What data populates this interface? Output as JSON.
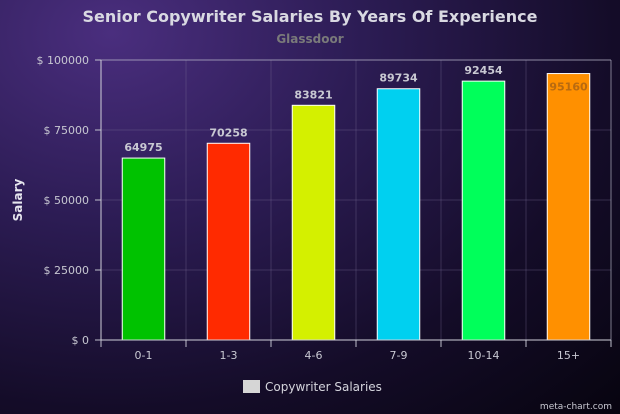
{
  "chart_data": {
    "type": "bar",
    "title": "Senior Copywriter Salaries By Years Of Experience",
    "subtitle": "Glassdoor",
    "xlabel": "",
    "ylabel": "Salary",
    "categories": [
      "0-1",
      "1-3",
      "4-6",
      "7-9",
      "10-14",
      "15+"
    ],
    "series": [
      {
        "name": "Copywriter Salaries",
        "values": [
          64975,
          70258,
          83821,
          89734,
          92454,
          95160
        ],
        "colors": [
          "#00c200",
          "#ff2a00",
          "#d4f000",
          "#00d0f0",
          "#00ff5a",
          "#ff9000"
        ]
      }
    ],
    "data_labels": [
      "64975",
      "70258",
      "83821",
      "89734",
      "92454",
      "95160"
    ],
    "ylim": [
      0,
      100000
    ],
    "yticks": [
      0,
      25000,
      50000,
      75000,
      100000
    ],
    "ytick_labels": [
      "$ 0",
      "$ 25000",
      "$ 50000",
      "$ 75000",
      "$ 100000"
    ],
    "grid": true,
    "legend_position": "bottom-center"
  },
  "credit": "meta-chart.com"
}
